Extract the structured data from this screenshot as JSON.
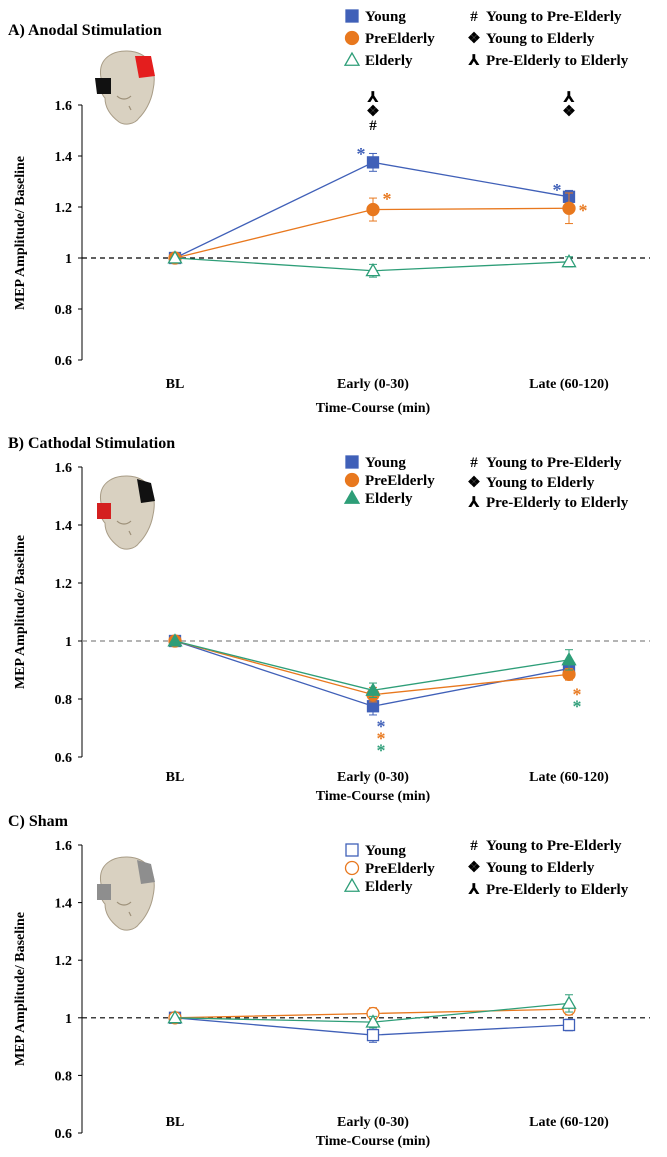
{
  "colors": {
    "young": "#4060b8",
    "preelderly": "#e8781e",
    "elderly": "#2e9e78"
  },
  "chart_data": [
    {
      "type": "line",
      "title": "A) Anodal Stimulation",
      "xlabel": "Time-Course (min)",
      "ylabel": "MEP Amplitude/ Baseline",
      "categories": [
        "BL",
        "Early (0-30)",
        "Late (60-120)"
      ],
      "ylim": [
        0.6,
        1.6
      ],
      "yticks": [
        "0.6",
        "0.8",
        "1",
        "1.2",
        "1.4",
        "1.6"
      ],
      "reference_line": 1,
      "reference_style": "black-dashed",
      "marker_fill": "filled",
      "series": [
        {
          "name": "Young",
          "marker": "square",
          "color": "#4060b8",
          "values": [
            1.0,
            1.375,
            1.24
          ],
          "errors": [
            0,
            0.035,
            0.025
          ]
        },
        {
          "name": "PreElderly",
          "marker": "circle",
          "color": "#e8781e",
          "values": [
            1.0,
            1.19,
            1.195
          ],
          "errors": [
            0,
            0.045,
            0.06
          ]
        },
        {
          "name": "Elderly",
          "marker": "triangle",
          "color": "#2e9e78",
          "marker_fill": "open",
          "values": [
            1.0,
            0.95,
            0.985
          ],
          "errors": [
            0,
            0.025,
            0.02
          ]
        }
      ],
      "stars": [
        {
          "category": 1,
          "value": 1.415,
          "series": "Young",
          "side": "left"
        },
        {
          "category": 1,
          "value": 1.24,
          "series": "PreElderly",
          "side": "right"
        },
        {
          "category": 2,
          "value": 1.275,
          "series": "Young",
          "side": "left"
        },
        {
          "category": 2,
          "value": 1.195,
          "series": "PreElderly",
          "side": "right"
        }
      ],
      "group_markers": [
        {
          "category": 1,
          "symbols": [
            "⅄",
            "❖",
            "#"
          ]
        },
        {
          "category": 2,
          "symbols": [
            "⅄",
            "❖"
          ]
        }
      ],
      "sig_legend": [
        {
          "symbol": "#",
          "label": "Young to Pre-Elderly"
        },
        {
          "symbol": "❖",
          "label": "Young to Elderly"
        },
        {
          "symbol": "⅄",
          "label": "Pre-Elderly to Elderly"
        }
      ],
      "head_icon": "head-red-black-icon"
    },
    {
      "type": "line",
      "title": "B) Cathodal Stimulation",
      "xlabel": "Time-Course (min)",
      "ylabel": "MEP Amplitude/ Baseline",
      "categories": [
        "BL",
        "Early (0-30)",
        "Late (60-120)"
      ],
      "ylim": [
        0.6,
        1.6
      ],
      "yticks": [
        "0.6",
        "0.8",
        "1",
        "1.2",
        "1.4",
        "1.6"
      ],
      "reference_line": 1,
      "reference_style": "grey-dashed",
      "marker_fill": "filled",
      "series": [
        {
          "name": "Young",
          "marker": "square",
          "color": "#4060b8",
          "values": [
            1.0,
            0.775,
            0.905
          ],
          "errors": [
            0,
            0.03,
            0.025
          ]
        },
        {
          "name": "PreElderly",
          "marker": "circle",
          "color": "#e8781e",
          "values": [
            1.0,
            0.815,
            0.885
          ],
          "errors": [
            0,
            0.025,
            0.02
          ]
        },
        {
          "name": "Elderly",
          "marker": "triangle",
          "color": "#2e9e78",
          "values": [
            1.0,
            0.83,
            0.935
          ],
          "errors": [
            0,
            0.025,
            0.035
          ]
        }
      ],
      "star_columns": [
        {
          "category": 1,
          "colors": [
            "#4060b8",
            "#e8781e",
            "#2e9e78"
          ]
        },
        {
          "category": 2,
          "colors": [
            "#e8781e",
            "#2e9e78"
          ]
        }
      ],
      "sig_legend": [
        {
          "symbol": "#",
          "label": "Young to Pre-Elderly"
        },
        {
          "symbol": "❖",
          "label": "Young to Elderly"
        },
        {
          "symbol": "⅄",
          "label": "Pre-Elderly to Elderly"
        }
      ],
      "head_icon": "head-black-red-icon"
    },
    {
      "type": "line",
      "title": "C) Sham",
      "xlabel": "Time-Course (min)",
      "ylabel": "MEP Amplitude/ Baseline",
      "categories": [
        "BL",
        "Early (0-30)",
        "Late (60-120)"
      ],
      "ylim": [
        0.6,
        1.6
      ],
      "yticks": [
        "0.6",
        "0.8",
        "1",
        "1.2",
        "1.4",
        "1.6"
      ],
      "reference_line": 1,
      "reference_style": "black-dashed",
      "marker_fill": "open",
      "series": [
        {
          "name": "Young",
          "marker": "square",
          "color": "#4060b8",
          "values": [
            1.0,
            0.94,
            0.975
          ],
          "errors": [
            0,
            0.025,
            0.02
          ]
        },
        {
          "name": "PreElderly",
          "marker": "circle",
          "color": "#e8781e",
          "values": [
            1.0,
            1.015,
            1.03
          ],
          "errors": [
            0,
            0.02,
            0.02
          ]
        },
        {
          "name": "Elderly",
          "marker": "triangle",
          "color": "#2e9e78",
          "values": [
            1.0,
            0.985,
            1.05
          ],
          "errors": [
            0,
            0.02,
            0.03
          ]
        }
      ],
      "sig_legend": [
        {
          "symbol": "#",
          "label": "Young to Pre-Elderly"
        },
        {
          "symbol": "❖",
          "label": "Young to Elderly"
        },
        {
          "symbol": "⅄",
          "label": "Pre-Elderly to Elderly"
        }
      ],
      "head_icon": "head-grey-icon"
    }
  ]
}
